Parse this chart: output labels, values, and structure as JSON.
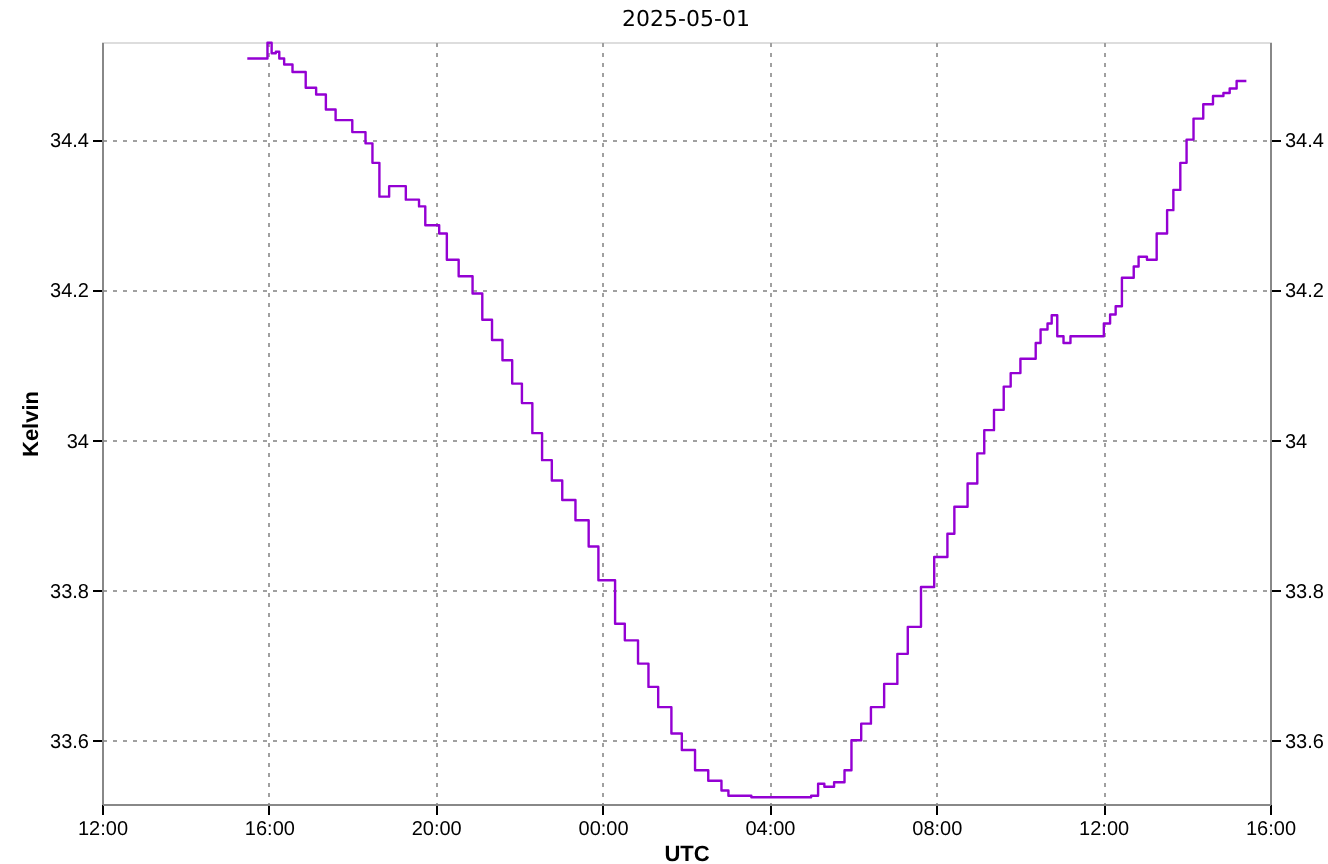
{
  "chart_data": {
    "type": "step",
    "title": "2025-05-01",
    "xlabel": "UTC",
    "ylabel": "Kelvin",
    "xlim": [
      "2025-04-30T12:00",
      "2025-05-01T16:00"
    ],
    "xticks": [
      {
        "value": "2025-04-30T12:00",
        "label": "12:00"
      },
      {
        "value": "2025-04-30T16:00",
        "label": "16:00"
      },
      {
        "value": "2025-04-30T20:00",
        "label": "20:00"
      },
      {
        "value": "2025-05-01T00:00",
        "label": "00:00"
      },
      {
        "value": "2025-05-01T04:00",
        "label": "04:00"
      },
      {
        "value": "2025-05-01T08:00",
        "label": "08:00"
      },
      {
        "value": "2025-05-01T12:00",
        "label": "12:00"
      },
      {
        "value": "2025-05-01T16:00",
        "label": "16:00"
      }
    ],
    "ylim": [
      33.516,
      34.531
    ],
    "yticks": [
      33.6,
      33.8,
      34,
      34.2,
      34.4
    ],
    "y2lim": [
      33.516,
      34.531
    ],
    "y2ticks": [
      33.6,
      33.8,
      34,
      34.2,
      34.4
    ],
    "grid": true,
    "line_style": "solid",
    "marker": "none",
    "x": [
      "2025-04-30T15:29",
      "2025-04-30T15:51",
      "2025-04-30T15:58",
      "2025-04-30T16:04",
      "2025-04-30T16:10",
      "2025-04-30T16:15",
      "2025-04-30T16:22",
      "2025-04-30T16:34",
      "2025-04-30T16:53",
      "2025-04-30T17:08",
      "2025-04-30T17:22",
      "2025-04-30T17:36",
      "2025-04-30T18:00",
      "2025-04-30T18:19",
      "2025-04-30T18:29",
      "2025-04-30T18:39",
      "2025-04-30T18:53",
      "2025-04-30T19:12",
      "2025-04-30T19:17",
      "2025-04-30T19:36",
      "2025-04-30T19:45",
      "2025-04-30T20:05",
      "2025-04-30T20:16",
      "2025-04-30T20:33",
      "2025-04-30T20:53",
      "2025-04-30T21:07",
      "2025-04-30T21:21",
      "2025-04-30T21:36",
      "2025-04-30T21:50",
      "2025-04-30T22:04",
      "2025-04-30T22:19",
      "2025-04-30T22:33",
      "2025-04-30T22:47",
      "2025-04-30T23:02",
      "2025-04-30T23:21",
      "2025-04-30T23:40",
      "2025-04-30T23:54",
      "2025-05-01T00:18",
      "2025-05-01T00:32",
      "2025-05-01T00:51",
      "2025-05-01T01:06",
      "2025-05-01T01:20",
      "2025-05-01T01:39",
      "2025-05-01T01:54",
      "2025-05-01T02:13",
      "2025-05-01T02:32",
      "2025-05-01T02:51",
      "2025-05-01T03:01",
      "2025-05-01T03:34",
      "2025-05-01T04:12",
      "2025-05-01T05:00",
      "2025-05-01T05:10",
      "2025-05-01T05:19",
      "2025-05-01T05:33",
      "2025-05-01T05:48",
      "2025-05-01T05:58",
      "2025-05-01T06:12",
      "2025-05-01T06:26",
      "2025-05-01T06:45",
      "2025-05-01T07:04",
      "2025-05-01T07:19",
      "2025-05-01T07:38",
      "2025-05-01T07:57",
      "2025-05-01T08:16",
      "2025-05-01T08:26",
      "2025-05-01T08:45",
      "2025-05-01T08:59",
      "2025-05-01T09:09",
      "2025-05-01T09:23",
      "2025-05-01T09:37",
      "2025-05-01T09:47",
      "2025-05-01T10:01",
      "2025-05-01T10:17",
      "2025-05-01T10:23",
      "2025-05-01T10:30",
      "2025-05-01T10:40",
      "2025-05-01T10:46",
      "2025-05-01T10:54",
      "2025-05-01T11:03",
      "2025-05-01T11:13",
      "2025-05-01T11:51",
      "2025-05-01T12:01",
      "2025-05-01T12:10",
      "2025-05-01T12:18",
      "2025-05-01T12:27",
      "2025-05-01T12:44",
      "2025-05-01T12:51",
      "2025-05-01T13:03",
      "2025-05-01T13:17",
      "2025-05-01T13:32",
      "2025-05-01T13:41",
      "2025-05-01T13:51",
      "2025-05-01T14:00",
      "2025-05-01T14:10",
      "2025-05-01T14:24",
      "2025-05-01T14:38",
      "2025-05-01T14:53",
      "2025-05-01T15:02",
      "2025-05-01T15:12",
      "2025-05-01T15:26"
    ],
    "series": [
      {
        "color": "#9400d3",
        "values": [
          34.509,
          34.509,
          34.53,
          34.516,
          34.518,
          34.509,
          34.501,
          34.491,
          34.47,
          34.461,
          34.441,
          34.427,
          34.411,
          34.396,
          34.37,
          34.325,
          34.339,
          34.339,
          34.321,
          34.312,
          34.287,
          34.276,
          34.241,
          34.219,
          34.196,
          34.161,
          34.134,
          34.107,
          34.076,
          34.05,
          34.01,
          33.974,
          33.947,
          33.921,
          33.894,
          33.859,
          33.814,
          33.756,
          33.734,
          33.703,
          33.672,
          33.645,
          33.61,
          33.588,
          33.561,
          33.547,
          33.534,
          33.527,
          33.525,
          33.525,
          33.527,
          33.543,
          33.539,
          33.545,
          33.561,
          33.601,
          33.623,
          33.645,
          33.676,
          33.716,
          33.752,
          33.805,
          33.845,
          33.876,
          33.912,
          33.943,
          33.983,
          34.014,
          34.041,
          34.072,
          34.09,
          34.109,
          34.109,
          34.13,
          34.148,
          34.156,
          34.167,
          34.139,
          34.13,
          34.139,
          34.139,
          34.156,
          34.168,
          34.179,
          34.217,
          34.232,
          34.245,
          34.241,
          34.276,
          34.307,
          34.334,
          34.37,
          34.401,
          34.429,
          34.448,
          34.459,
          34.463,
          34.469,
          34.479,
          34.479
        ]
      }
    ]
  }
}
